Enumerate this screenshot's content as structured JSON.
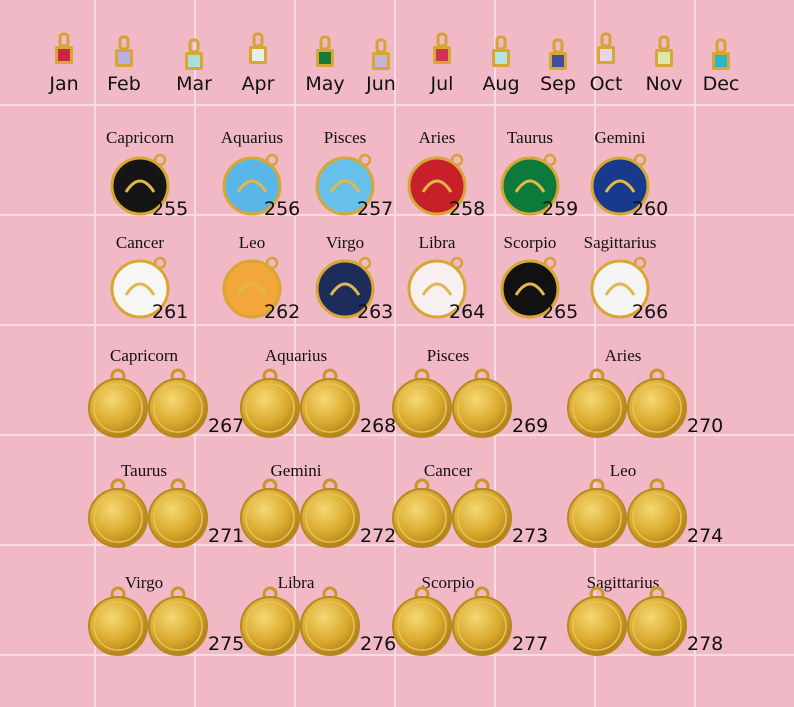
{
  "birthstones": [
    {
      "month": "Jan"
    },
    {
      "month": "Feb"
    },
    {
      "month": "Mar"
    },
    {
      "month": "Apr"
    },
    {
      "month": "May"
    },
    {
      "month": "Jun"
    },
    {
      "month": "Jul"
    },
    {
      "month": "Aug"
    },
    {
      "month": "Sep"
    },
    {
      "month": "Oct"
    },
    {
      "month": "Nov"
    },
    {
      "month": "Dec"
    }
  ],
  "enamel_charms": [
    {
      "sign": "Capricorn",
      "number": 255
    },
    {
      "sign": "Aquarius",
      "number": 256
    },
    {
      "sign": "Pisces",
      "number": 257
    },
    {
      "sign": "Aries",
      "number": 258
    },
    {
      "sign": "Taurus",
      "number": 259
    },
    {
      "sign": "Gemini",
      "number": 260
    },
    {
      "sign": "Cancer",
      "number": 261
    },
    {
      "sign": "Leo",
      "number": 262
    },
    {
      "sign": "Virgo",
      "number": 263
    },
    {
      "sign": "Libra",
      "number": 264
    },
    {
      "sign": "Scorpio",
      "number": 265
    },
    {
      "sign": "Sagittarius",
      "number": 266
    }
  ],
  "gold_coins": [
    {
      "sign": "Capricorn",
      "number": 267
    },
    {
      "sign": "Aquarius",
      "number": 268
    },
    {
      "sign": "Pisces",
      "number": 269
    },
    {
      "sign": "Aries",
      "number": 270
    },
    {
      "sign": "Taurus",
      "number": 271
    },
    {
      "sign": "Gemini",
      "number": 272
    },
    {
      "sign": "Cancer",
      "number": 273
    },
    {
      "sign": "Leo",
      "number": 274
    },
    {
      "sign": "Virgo",
      "number": 275
    },
    {
      "sign": "Libra",
      "number": 276
    },
    {
      "sign": "Scorpio",
      "number": 277
    },
    {
      "sign": "Sagittarius",
      "number": 278
    }
  ]
}
